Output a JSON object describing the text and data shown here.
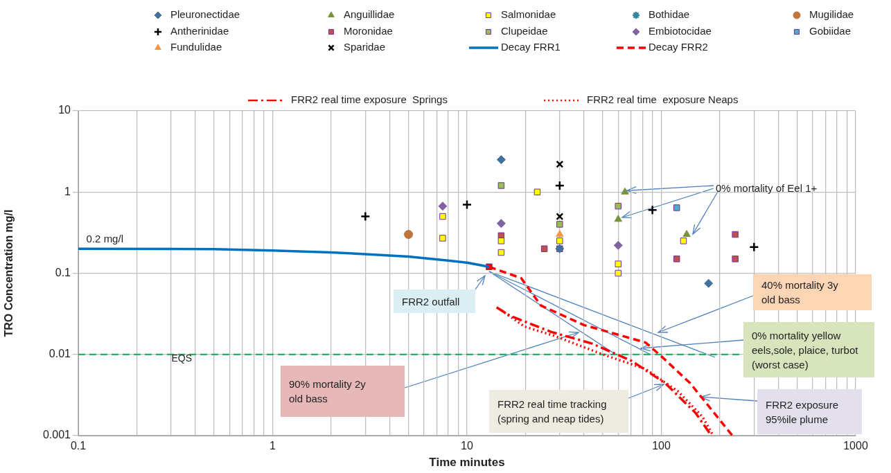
{
  "chart_data": {
    "type": "scatter",
    "xlabel": "Time minutes",
    "ylabel": "TRO Concentration mg/l",
    "xlim": [
      0.1,
      1000
    ],
    "ylim": [
      0.001,
      10
    ],
    "log": "xy",
    "grid": true,
    "legend": "top",
    "xticks": [
      0.1,
      {
        "value": 0.2,
        "label": null
      },
      {
        "value": 0.3,
        "label": null
      },
      {
        "value": 0.4,
        "label": null
      },
      {
        "value": 0.5,
        "label": null
      },
      {
        "value": 0.6,
        "label": null
      },
      {
        "value": 0.7,
        "label": null
      },
      {
        "value": 0.8,
        "label": null
      },
      {
        "value": 0.9,
        "label": null
      },
      1,
      {
        "value": 2,
        "label": null
      },
      {
        "value": 3,
        "label": null
      },
      {
        "value": 4,
        "label": null
      },
      {
        "value": 5,
        "label": null
      },
      {
        "value": 6,
        "label": null
      },
      {
        "value": 7,
        "label": null
      },
      {
        "value": 8,
        "label": null
      },
      {
        "value": 9,
        "label": null
      },
      10,
      {
        "value": 20,
        "label": null
      },
      {
        "value": 30,
        "label": null
      },
      {
        "value": 40,
        "label": null
      },
      {
        "value": 50,
        "label": null
      },
      {
        "value": 60,
        "label": null
      },
      {
        "value": 70,
        "label": null
      },
      {
        "value": 80,
        "label": null
      },
      {
        "value": 90,
        "label": null
      },
      100,
      {
        "value": 200,
        "label": null
      },
      {
        "value": 300,
        "label": null
      },
      {
        "value": 400,
        "label": null
      },
      {
        "value": 500,
        "label": null
      },
      {
        "value": 600,
        "label": null
      },
      {
        "value": 700,
        "label": null
      },
      {
        "value": 800,
        "label": null
      },
      {
        "value": 900,
        "label": null
      },
      1000
    ],
    "yticks": [
      0.001,
      0.01,
      0.1,
      1,
      10
    ],
    "series": [
      {
        "name": "Pleuronectidae",
        "marker": "diamond",
        "color": "#41719c",
        "x": [
          15,
          30,
          175
        ],
        "values": [
          2.5,
          0.2,
          0.075
        ]
      },
      {
        "name": "Anguillidae",
        "marker": "triangle",
        "color": "#77933c",
        "x": [
          65,
          60,
          135
        ],
        "values": [
          1,
          0.46,
          0.3
        ]
      },
      {
        "name": "Salmonidae",
        "marker": "square",
        "color": "#ffff00",
        "x": [
          7.5,
          7.5,
          15,
          15,
          23,
          30,
          60,
          60,
          130
        ],
        "values": [
          0.5,
          0.27,
          0.25,
          0.18,
          1,
          0.25,
          0.13,
          0.1,
          0.25
        ]
      },
      {
        "name": "Bothidae",
        "marker": "star",
        "color": "#31859c"
      },
      {
        "name": "Mugilidae",
        "marker": "circle",
        "color": "#c0753b",
        "x": [
          5
        ],
        "values": [
          0.3
        ]
      },
      {
        "name": "Antherinidae",
        "marker": "cross",
        "color": "#000000",
        "x": [
          3,
          10,
          30,
          90,
          300
        ],
        "values": [
          0.5,
          0.7,
          1.2,
          0.6,
          0.21
        ]
      },
      {
        "name": "Moronidae",
        "marker": "square",
        "color": "#c0504d",
        "x": [
          15,
          25,
          30,
          120,
          240,
          240
        ],
        "values": [
          0.29,
          0.2,
          0.2,
          0.15,
          0.3,
          0.15
        ]
      },
      {
        "name": "Clupeidae",
        "marker": "square",
        "color": "#9bbb59",
        "x": [
          15,
          30,
          60
        ],
        "values": [
          1.2,
          0.4,
          0.67
        ]
      },
      {
        "name": "Embiotocidae",
        "marker": "diamond",
        "color": "#8064a2",
        "x": [
          7.5,
          15,
          60
        ],
        "values": [
          0.67,
          0.41,
          0.22
        ]
      },
      {
        "name": "Gobiidae",
        "marker": "square",
        "color": "#4bacc6",
        "x": [
          120
        ],
        "values": [
          0.64
        ]
      },
      {
        "name": "Fundulidae",
        "marker": "triangle",
        "color": "#f79646",
        "x": [
          30
        ],
        "values": [
          0.3
        ]
      },
      {
        "name": "Sparidae",
        "marker": "x",
        "color": "#000000",
        "x": [
          30,
          30
        ],
        "values": [
          2.2,
          0.5
        ]
      },
      {
        "name": "Decay FRR1",
        "type": "line",
        "marker": "none",
        "line_style": "solid",
        "color": "#0070c0",
        "x": [
          0.1,
          0.5,
          1,
          2,
          3,
          5,
          8,
          10,
          13
        ],
        "values": [
          0.2,
          0.198,
          0.19,
          0.18,
          0.172,
          0.16,
          0.143,
          0.135,
          0.12
        ]
      },
      {
        "name": "Decay FRR2",
        "type": "line",
        "marker": "none",
        "line_style": "dashed",
        "color": "#ff0000",
        "x": [
          13,
          19,
          24,
          40,
          83,
          100,
          141,
          232
        ],
        "values": [
          0.12,
          0.087,
          0.04,
          0.023,
          0.014,
          0.0095,
          0.0044,
          0.001
        ]
      },
      {
        "name": "FRR2 real time exposure  Springs",
        "type": "line",
        "marker": "none",
        "line_style": "dashdot",
        "color": "#ff0000",
        "x": [
          14.2,
          16.6,
          27,
          44,
          70.5,
          105,
          150,
          181
        ],
        "values": [
          0.038,
          0.03,
          0.019,
          0.0136,
          0.0083,
          0.0044,
          0.0019,
          0.001
        ]
      },
      {
        "name": "FRR2 real time  exposure Neaps",
        "type": "line",
        "marker": "none",
        "line_style": "dotted",
        "color": "#ff0000",
        "x": [
          15,
          19.8,
          28,
          50,
          83,
          122,
          163,
          185
        ],
        "values": [
          0.035,
          0.022,
          0.017,
          0.01,
          0.0066,
          0.0035,
          0.0017,
          0.001
        ]
      },
      {
        "marker": "square",
        "color": "#ff0000",
        "x": [
          13
        ],
        "values": [
          0.12
        ]
      }
    ],
    "ref_lines": [
      {
        "axis": "y",
        "value": 0.01,
        "label": "EQS",
        "color": "#00b050",
        "line_style": "dashed"
      }
    ],
    "annotations": [
      {
        "text": "0.2 mg/l",
        "x": 0.11,
        "y": 0.2
      },
      "FRR2 outfall",
      {
        "text": "0% mortality of Eel 1+",
        "x": 65,
        "y": 1
      },
      "40% mortality 3y old bass",
      "0% mortality yellow eels,sole, plaice, turbot (worst case)",
      "90% mortality 2y old bass",
      "FRR2 real time tracking (spring and neap tides)",
      {
        "text": "FRR2 exposure 95%ile plume",
        "x": 160,
        "y": 0.003
      }
    ]
  }
}
